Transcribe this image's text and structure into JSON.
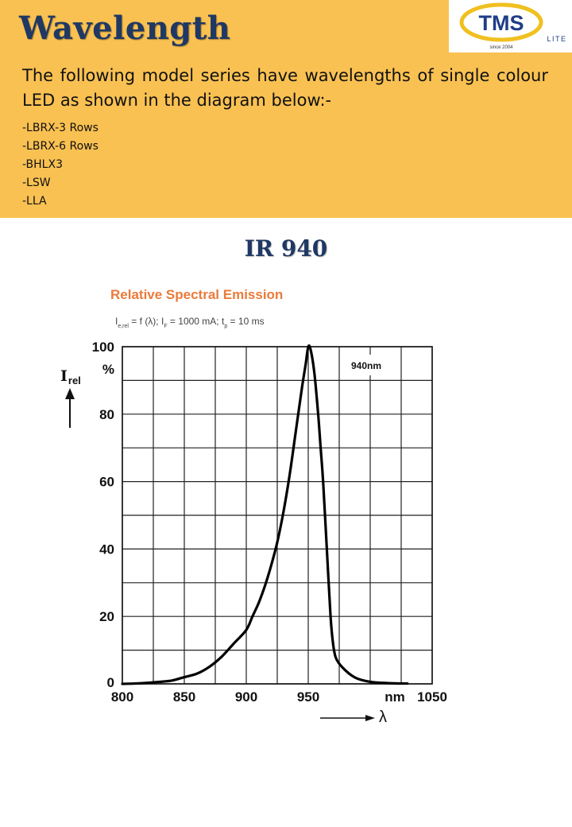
{
  "header": {
    "title": "Wavelength",
    "logo_text": "TMS",
    "logo_sub": "LITE",
    "logo_since": "since 2004",
    "intro": "The following model series have wavelengths of single colour LED as shown in the diagram below:-",
    "models": [
      "-LBRX-3 Rows",
      "-LBRX-6 Rows",
      "-BHLX3",
      "-LSW",
      "-LLA"
    ]
  },
  "section_title": "IR 940",
  "colors": {
    "header_bg": "#f9c152",
    "title": "#1f3864",
    "chart_title": "#ea7a3a"
  },
  "chart_data": {
    "type": "line",
    "title": "Relative Spectral Emission",
    "condition": "I<sub>e,rel</sub> = f (λ); I<sub>F</sub> = 1000 mA; t<sub>p</sub> = 10 ms",
    "condition_plain": "Ie,rel = f (λ); IF = 1000 mA; tp = 10 ms",
    "ylabel": "Irel",
    "ylabel_main": "I",
    "ylabel_sub": "rel",
    "y_unit": "%",
    "xlabel": "λ",
    "x_unit": "nm",
    "xlim": [
      800,
      1050
    ],
    "ylim": [
      0,
      100
    ],
    "x_ticks": [
      800,
      850,
      900,
      950,
      1050
    ],
    "y_ticks": [
      0,
      20,
      40,
      60,
      80,
      100
    ],
    "grid": true,
    "annotation": "940nm",
    "series": [
      {
        "x": [
          800,
          810,
          820,
          830,
          840,
          850,
          860,
          870,
          880,
          890,
          900,
          905,
          910,
          915,
          920,
          925,
          930,
          935,
          940,
          945,
          948,
          950,
          952,
          955,
          958,
          960,
          962,
          965,
          968,
          970,
          972,
          975,
          980,
          985,
          990,
          1000,
          1010,
          1020,
          1030
        ],
        "y": [
          0,
          0.1,
          0.3,
          0.6,
          1,
          2,
          3,
          5,
          8,
          12,
          16,
          20,
          24,
          29,
          35,
          42,
          51,
          62,
          75,
          88,
          95,
          100,
          99,
          92,
          80,
          70,
          60,
          40,
          20,
          12,
          8,
          6,
          4,
          2.5,
          1.5,
          0.6,
          0.3,
          0.15,
          0.1
        ]
      }
    ]
  }
}
